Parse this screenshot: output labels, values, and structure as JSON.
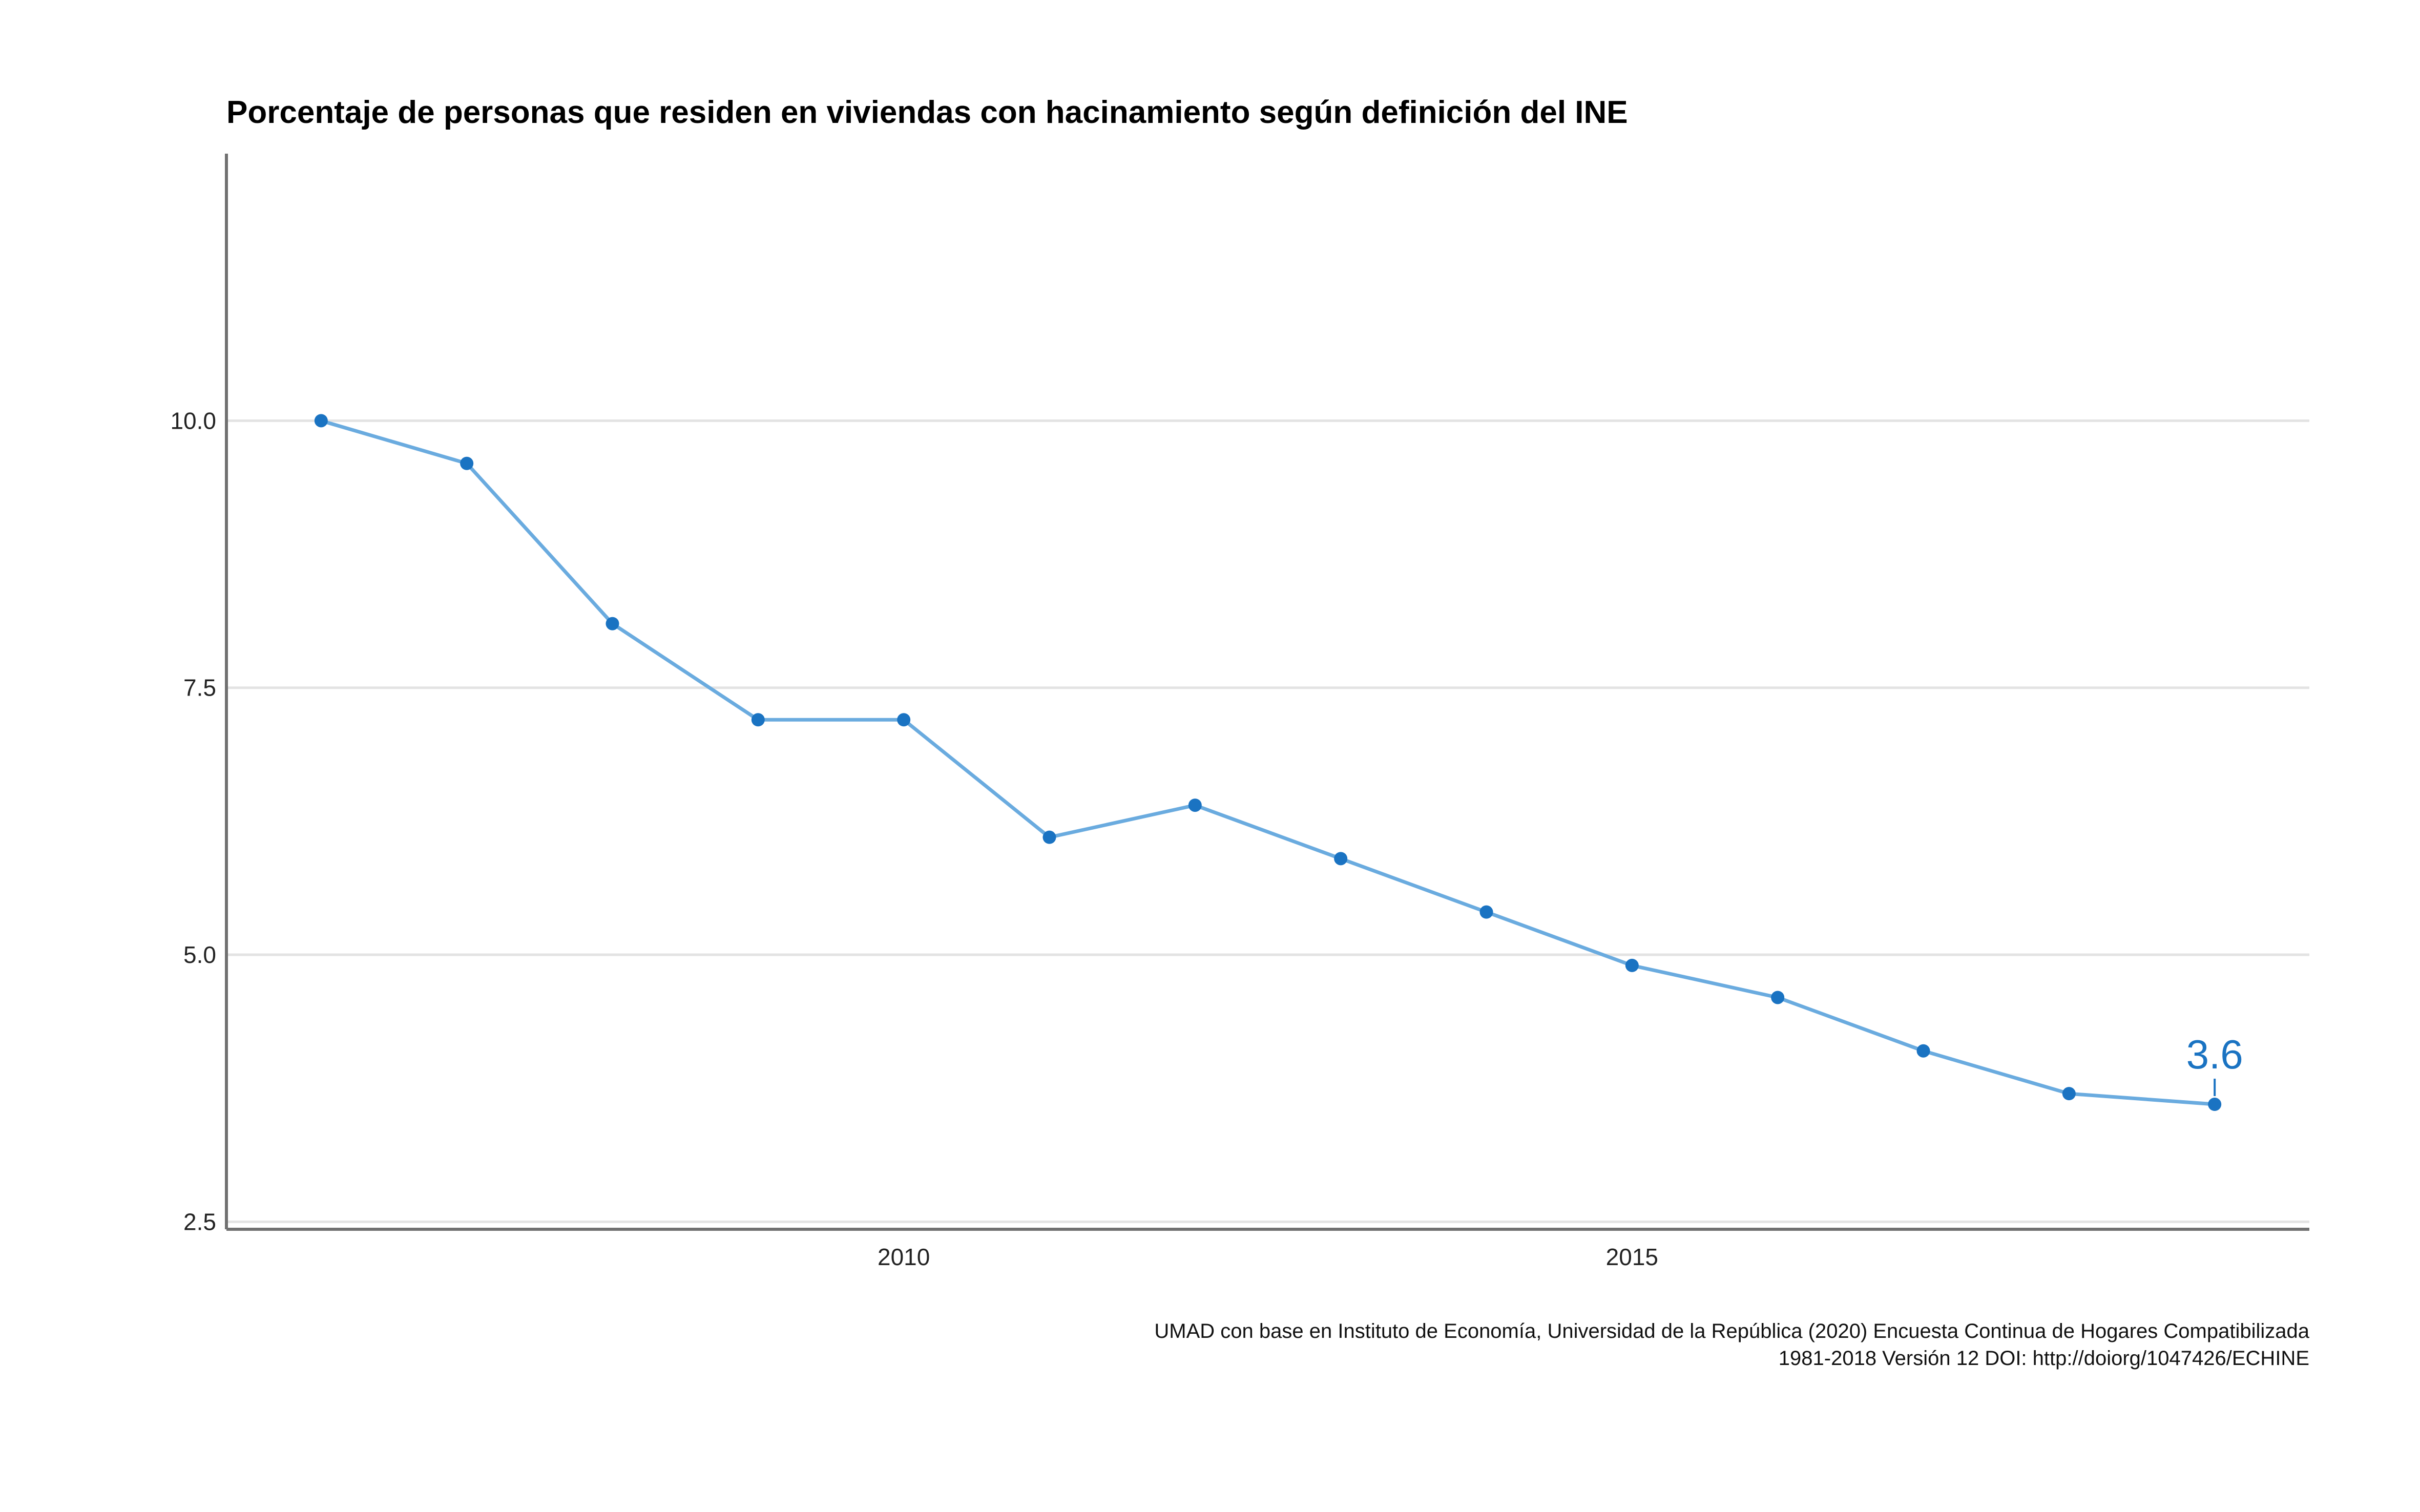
{
  "chart_data": {
    "type": "line",
    "title": "Porcentaje de personas que residen en viviendas con hacinamiento según definición del INE",
    "xlabel": "",
    "ylabel": "",
    "x": [
      2006,
      2007,
      2008,
      2009,
      2010,
      2011,
      2012,
      2013,
      2014,
      2015,
      2016,
      2017,
      2018,
      2019
    ],
    "series": [
      {
        "values": [
          10.0,
          9.6,
          8.1,
          7.2,
          7.2,
          6.1,
          6.4,
          5.9,
          5.4,
          4.9,
          4.6,
          4.1,
          3.7,
          3.6
        ]
      }
    ],
    "xlim": [
      2005.35,
      2019.65
    ],
    "ylim": [
      2.43,
      12.5
    ],
    "x_ticks": [
      2010,
      2015
    ],
    "x_tick_labels": [
      "2010",
      "2015"
    ],
    "y_ticks": [
      2.5,
      5.0,
      7.5,
      10.0
    ],
    "y_tick_labels": [
      "2.5",
      "5.0",
      "7.5",
      "10.0"
    ],
    "grid": "horizontal",
    "annotations": [
      {
        "x": 2019,
        "y": 3.6,
        "label": "3.6"
      }
    ],
    "caption_lines": [
      "UMAD con base en Instituto de Economía, Universidad de la República (2020) Encuesta Continua de Hogares Compatibilizada",
      "1981-2018 Versión 12 DOI: http://doiorg/1047426/ECHINE"
    ],
    "colors": {
      "line": "#6aabdf",
      "point": "#1a73c2",
      "annotation": "#1a73c2",
      "grid": "#e3e3e3",
      "axis": "#707070"
    }
  }
}
